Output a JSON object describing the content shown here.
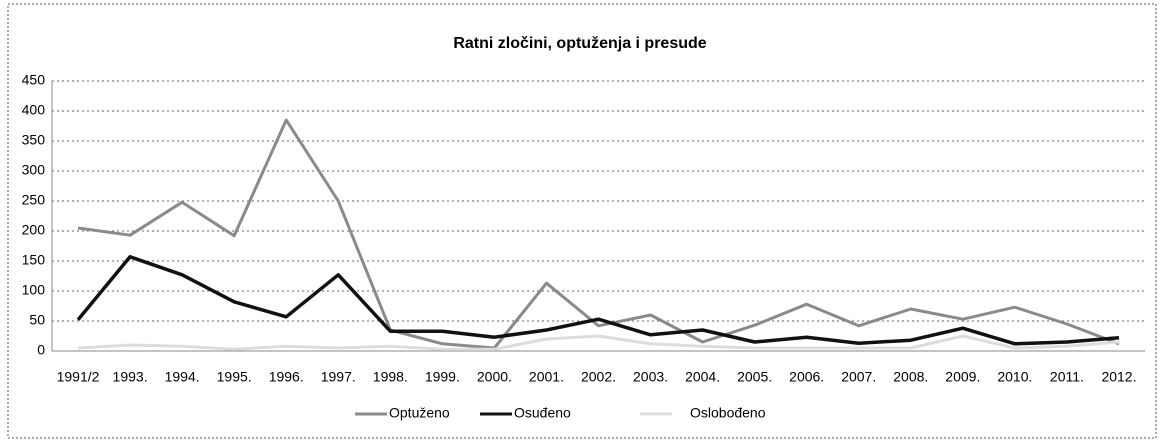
{
  "chart_data": {
    "type": "line",
    "title": "Ratni zločini, optuženja i presude",
    "categories": [
      "1991/2",
      "1993.",
      "1994.",
      "1995.",
      "1996.",
      "1997.",
      "1998.",
      "1999.",
      "2000.",
      "2001.",
      "2002.",
      "2003.",
      "2004.",
      "2005.",
      "2006.",
      "2007.",
      "2008.",
      "2009.",
      "2010.",
      "2011.",
      "2012."
    ],
    "series": [
      {
        "name": "Optuženo",
        "color": "#8a8a8a",
        "values": [
          205,
          193,
          248,
          192,
          385,
          250,
          35,
          12,
          5,
          113,
          42,
          60,
          15,
          43,
          78,
          42,
          70,
          53,
          73,
          45,
          12
        ]
      },
      {
        "name": "Osuđeno",
        "color": "#111111",
        "values": [
          52,
          157,
          127,
          82,
          57,
          127,
          33,
          33,
          23,
          35,
          53,
          27,
          35,
          15,
          23,
          13,
          18,
          38,
          12,
          15,
          22
        ]
      },
      {
        "name": "Oslobođeno",
        "color": "#dcdcdc",
        "values": [
          5,
          10,
          8,
          3,
          8,
          5,
          8,
          3,
          3,
          20,
          25,
          12,
          8,
          5,
          5,
          5,
          5,
          25,
          5,
          8,
          15
        ]
      }
    ],
    "ylim": [
      0,
      450
    ],
    "yticks": [
      0,
      50,
      100,
      150,
      200,
      250,
      300,
      350,
      400,
      450
    ],
    "grid": true
  }
}
